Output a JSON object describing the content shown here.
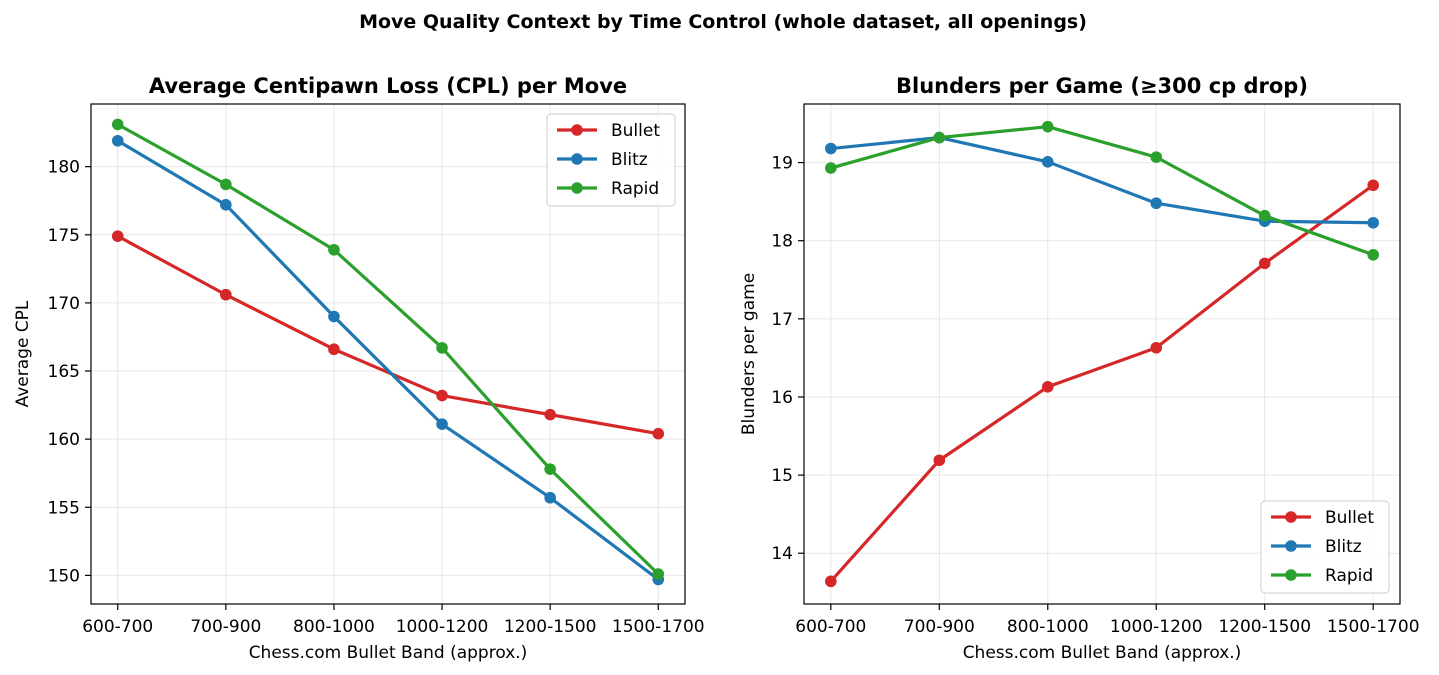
{
  "figure": {
    "suptitle": "Move Quality Context by Time Control (whole dataset, all openings)"
  },
  "chart_data": [
    {
      "type": "line",
      "title": "Average Centipawn Loss (CPL) per Move",
      "xlabel": "Chess.com Bullet Band (approx.)",
      "ylabel": "Average CPL",
      "categories": [
        "600-700",
        "700-900",
        "800-1000",
        "1000-1200",
        "1200-1500",
        "1500-1700"
      ],
      "ylim": [
        147.9,
        184.6
      ],
      "yticks": [
        150,
        155,
        160,
        165,
        170,
        175,
        180
      ],
      "grid": true,
      "legend_position": "top-right",
      "series": [
        {
          "name": "Bullet",
          "color": "#d62728",
          "values": [
            174.9,
            170.6,
            166.6,
            163.2,
            161.8,
            160.4
          ]
        },
        {
          "name": "Blitz",
          "color": "#1f77b4",
          "values": [
            181.9,
            177.2,
            169.0,
            161.1,
            155.7,
            149.7
          ]
        },
        {
          "name": "Rapid",
          "color": "#2ca02c",
          "values": [
            183.1,
            178.7,
            173.9,
            166.7,
            157.8,
            150.1
          ]
        }
      ]
    },
    {
      "type": "line",
      "title": "Blunders per Game (≥300 cp drop)",
      "xlabel": "Chess.com Bullet Band (approx.)",
      "ylabel": "Blunders per game",
      "categories": [
        "600-700",
        "700-900",
        "800-1000",
        "1000-1200",
        "1200-1500",
        "1500-1700"
      ],
      "ylim": [
        13.35,
        19.75
      ],
      "yticks": [
        14,
        15,
        16,
        17,
        18,
        19
      ],
      "grid": true,
      "legend_position": "bottom-right",
      "series": [
        {
          "name": "Bullet",
          "color": "#d62728",
          "values": [
            13.64,
            15.19,
            16.13,
            16.63,
            17.71,
            18.71
          ]
        },
        {
          "name": "Blitz",
          "color": "#1f77b4",
          "values": [
            19.18,
            19.32,
            19.01,
            18.48,
            18.25,
            18.23
          ]
        },
        {
          "name": "Rapid",
          "color": "#2ca02c",
          "values": [
            18.93,
            19.32,
            19.46,
            19.07,
            18.32,
            17.82
          ]
        }
      ]
    }
  ]
}
